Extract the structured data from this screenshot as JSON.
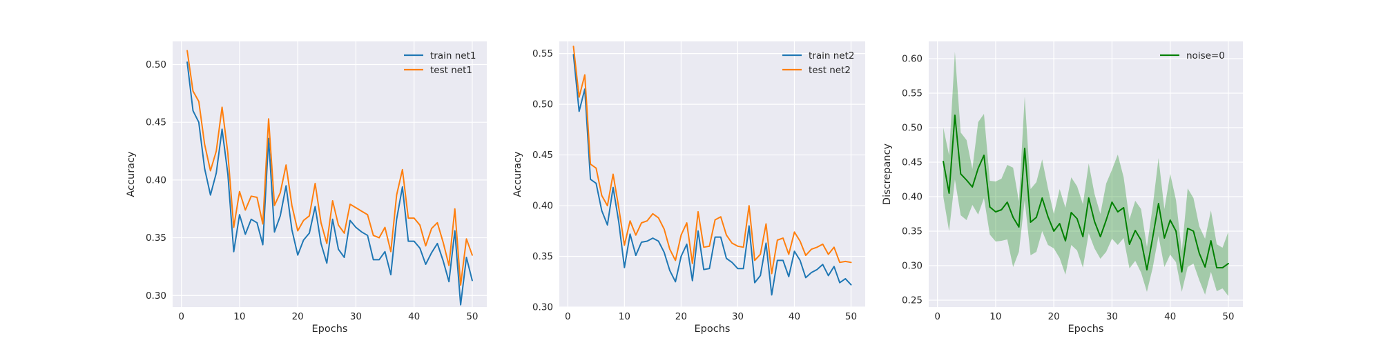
{
  "chart_data": [
    {
      "type": "line",
      "xlabel": "Epochs",
      "ylabel": "Accuracy",
      "xlim": [
        -1.5,
        52.5
      ],
      "ylim": [
        0.29,
        0.52
      ],
      "x_ticks": [
        0,
        10,
        20,
        30,
        40,
        50
      ],
      "y_ticks": [
        0.3,
        0.35,
        0.4,
        0.45,
        0.5
      ],
      "x_tick_labels": [
        "0",
        "10",
        "20",
        "30",
        "40",
        "50"
      ],
      "y_tick_labels": [
        "0.30",
        "0.35",
        "0.40",
        "0.45",
        "0.50"
      ],
      "grid": true,
      "legend_position": "upper-right",
      "x": [
        1,
        2,
        3,
        4,
        5,
        6,
        7,
        8,
        9,
        10,
        11,
        12,
        13,
        14,
        15,
        16,
        17,
        18,
        19,
        20,
        21,
        22,
        23,
        24,
        25,
        26,
        27,
        28,
        29,
        30,
        31,
        32,
        33,
        34,
        35,
        36,
        37,
        38,
        39,
        40,
        41,
        42,
        43,
        44,
        45,
        46,
        47,
        48,
        49,
        50
      ],
      "series": [
        {
          "name": "train net1",
          "color": "#1f77b4",
          "values": [
            0.502,
            0.46,
            0.45,
            0.41,
            0.387,
            0.406,
            0.444,
            0.405,
            0.338,
            0.37,
            0.353,
            0.366,
            0.363,
            0.344,
            0.436,
            0.355,
            0.369,
            0.395,
            0.357,
            0.335,
            0.348,
            0.354,
            0.377,
            0.345,
            0.328,
            0.366,
            0.34,
            0.333,
            0.365,
            0.359,
            0.355,
            0.352,
            0.331,
            0.331,
            0.338,
            0.318,
            0.366,
            0.394,
            0.347,
            0.347,
            0.341,
            0.327,
            0.337,
            0.345,
            0.33,
            0.312,
            0.356,
            0.292,
            0.333,
            0.313
          ]
        },
        {
          "name": "test net1",
          "color": "#ff7f0e",
          "values": [
            0.512,
            0.477,
            0.468,
            0.431,
            0.408,
            0.425,
            0.463,
            0.423,
            0.359,
            0.39,
            0.374,
            0.386,
            0.385,
            0.362,
            0.453,
            0.378,
            0.389,
            0.413,
            0.378,
            0.356,
            0.365,
            0.369,
            0.397,
            0.363,
            0.345,
            0.382,
            0.361,
            0.354,
            0.379,
            0.376,
            0.373,
            0.37,
            0.352,
            0.35,
            0.359,
            0.338,
            0.387,
            0.409,
            0.367,
            0.367,
            0.361,
            0.343,
            0.358,
            0.363,
            0.346,
            0.326,
            0.375,
            0.309,
            0.349,
            0.335
          ]
        }
      ]
    },
    {
      "type": "line",
      "xlabel": "Epochs",
      "ylabel": "Accuracy",
      "xlim": [
        -1.5,
        52.5
      ],
      "ylim": [
        0.3,
        0.562
      ],
      "x_ticks": [
        0,
        10,
        20,
        30,
        40,
        50
      ],
      "y_ticks": [
        0.3,
        0.35,
        0.4,
        0.45,
        0.5,
        0.55
      ],
      "x_tick_labels": [
        "0",
        "10",
        "20",
        "30",
        "40",
        "50"
      ],
      "y_tick_labels": [
        "0.30",
        "0.35",
        "0.40",
        "0.45",
        "0.50",
        "0.55"
      ],
      "grid": true,
      "legend_position": "upper-right",
      "x": [
        1,
        2,
        3,
        4,
        5,
        6,
        7,
        8,
        9,
        10,
        11,
        12,
        13,
        14,
        15,
        16,
        17,
        18,
        19,
        20,
        21,
        22,
        23,
        24,
        25,
        26,
        27,
        28,
        29,
        30,
        31,
        32,
        33,
        34,
        35,
        36,
        37,
        38,
        39,
        40,
        41,
        42,
        43,
        44,
        45,
        46,
        47,
        48,
        49,
        50
      ],
      "series": [
        {
          "name": "train net2",
          "color": "#1f77b4",
          "values": [
            0.549,
            0.493,
            0.515,
            0.426,
            0.422,
            0.395,
            0.381,
            0.418,
            0.384,
            0.339,
            0.372,
            0.351,
            0.364,
            0.365,
            0.368,
            0.365,
            0.354,
            0.336,
            0.325,
            0.35,
            0.362,
            0.326,
            0.375,
            0.337,
            0.338,
            0.369,
            0.369,
            0.348,
            0.344,
            0.338,
            0.338,
            0.38,
            0.324,
            0.331,
            0.363,
            0.312,
            0.346,
            0.346,
            0.33,
            0.355,
            0.346,
            0.329,
            0.334,
            0.337,
            0.342,
            0.331,
            0.34,
            0.324,
            0.328,
            0.322
          ]
        },
        {
          "name": "test net2",
          "color": "#ff7f0e",
          "values": [
            0.557,
            0.507,
            0.529,
            0.441,
            0.437,
            0.41,
            0.4,
            0.431,
            0.398,
            0.361,
            0.385,
            0.371,
            0.383,
            0.385,
            0.392,
            0.388,
            0.377,
            0.357,
            0.346,
            0.371,
            0.383,
            0.343,
            0.394,
            0.359,
            0.36,
            0.386,
            0.389,
            0.371,
            0.363,
            0.36,
            0.359,
            0.4,
            0.346,
            0.352,
            0.382,
            0.333,
            0.366,
            0.368,
            0.352,
            0.374,
            0.365,
            0.351,
            0.357,
            0.359,
            0.362,
            0.352,
            0.359,
            0.344,
            0.345,
            0.344
          ]
        }
      ]
    },
    {
      "type": "area",
      "xlabel": "Epochs",
      "ylabel": "Discrepancy",
      "xlim": [
        -1.5,
        52.5
      ],
      "ylim": [
        0.24,
        0.625
      ],
      "x_ticks": [
        0,
        10,
        20,
        30,
        40,
        50
      ],
      "y_ticks": [
        0.25,
        0.3,
        0.35,
        0.4,
        0.45,
        0.5,
        0.55,
        0.6
      ],
      "x_tick_labels": [
        "0",
        "10",
        "20",
        "30",
        "40",
        "50"
      ],
      "y_tick_labels": [
        "0.25",
        "0.30",
        "0.35",
        "0.40",
        "0.45",
        "0.50",
        "0.55",
        "0.60"
      ],
      "grid": true,
      "legend_position": "upper-right",
      "x": [
        1,
        2,
        3,
        4,
        5,
        6,
        7,
        8,
        9,
        10,
        11,
        12,
        13,
        14,
        15,
        16,
        17,
        18,
        19,
        20,
        21,
        22,
        23,
        24,
        25,
        26,
        27,
        28,
        29,
        30,
        31,
        32,
        33,
        34,
        35,
        36,
        37,
        38,
        39,
        40,
        41,
        42,
        43,
        44,
        45,
        46,
        47,
        48,
        49,
        50
      ],
      "series": [
        {
          "name": "noise=0",
          "color": "#008000",
          "band_color": "#008000",
          "values": [
            0.451,
            0.405,
            0.518,
            0.433,
            0.424,
            0.414,
            0.441,
            0.46,
            0.385,
            0.378,
            0.381,
            0.392,
            0.37,
            0.356,
            0.47,
            0.363,
            0.37,
            0.398,
            0.371,
            0.35,
            0.361,
            0.336,
            0.377,
            0.368,
            0.342,
            0.398,
            0.364,
            0.342,
            0.366,
            0.392,
            0.378,
            0.384,
            0.331,
            0.351,
            0.337,
            0.294,
            0.341,
            0.39,
            0.34,
            0.366,
            0.35,
            0.291,
            0.354,
            0.35,
            0.318,
            0.298,
            0.336,
            0.297,
            0.297,
            0.303
          ],
          "lower": [
            0.4,
            0.35,
            0.425,
            0.373,
            0.366,
            0.388,
            0.374,
            0.398,
            0.345,
            0.335,
            0.336,
            0.338,
            0.298,
            0.32,
            0.395,
            0.315,
            0.32,
            0.35,
            0.33,
            0.325,
            0.311,
            0.287,
            0.33,
            0.322,
            0.297,
            0.347,
            0.325,
            0.31,
            0.32,
            0.339,
            0.33,
            0.34,
            0.296,
            0.307,
            0.29,
            0.262,
            0.297,
            0.343,
            0.298,
            0.316,
            0.305,
            0.262,
            0.298,
            0.303,
            0.279,
            0.258,
            0.291,
            0.263,
            0.267,
            0.256
          ],
          "upper": [
            0.5,
            0.46,
            0.61,
            0.493,
            0.482,
            0.44,
            0.508,
            0.52,
            0.423,
            0.422,
            0.426,
            0.446,
            0.442,
            0.393,
            0.545,
            0.411,
            0.421,
            0.454,
            0.412,
            0.375,
            0.411,
            0.384,
            0.428,
            0.415,
            0.389,
            0.448,
            0.404,
            0.375,
            0.419,
            0.439,
            0.461,
            0.428,
            0.367,
            0.394,
            0.382,
            0.327,
            0.386,
            0.456,
            0.382,
            0.433,
            0.395,
            0.321,
            0.412,
            0.398,
            0.357,
            0.339,
            0.38,
            0.331,
            0.326,
            0.349
          ]
        }
      ]
    }
  ]
}
